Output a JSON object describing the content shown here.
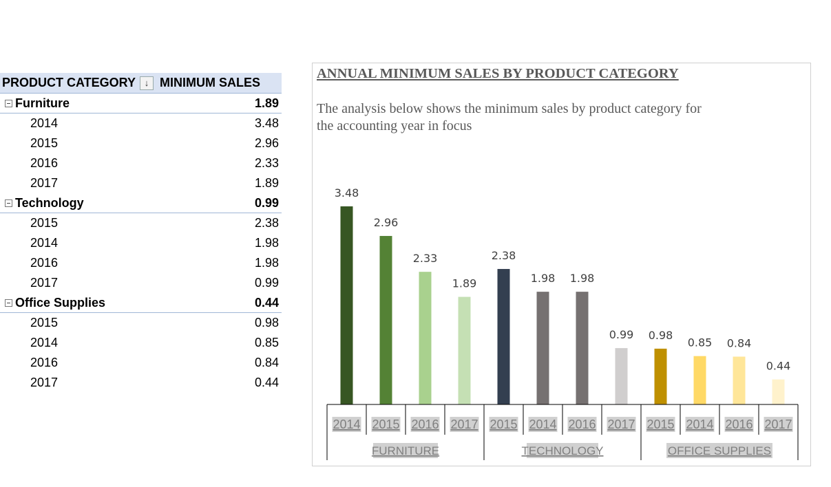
{
  "pivot": {
    "header": {
      "category": "PRODUCT CATEGORY",
      "value": "MINIMUM SALES"
    },
    "groups": [
      {
        "name": "Furniture",
        "total": "1.89",
        "rows": [
          {
            "year": "2014",
            "value": "3.48"
          },
          {
            "year": "2015",
            "value": "2.96"
          },
          {
            "year": "2016",
            "value": "2.33"
          },
          {
            "year": "2017",
            "value": "1.89"
          }
        ]
      },
      {
        "name": "Technology",
        "total": "0.99",
        "rows": [
          {
            "year": "2015",
            "value": "2.38"
          },
          {
            "year": "2014",
            "value": "1.98"
          },
          {
            "year": "2016",
            "value": "1.98"
          },
          {
            "year": "2017",
            "value": "0.99"
          }
        ]
      },
      {
        "name": "Office Supplies",
        "total": "0.44",
        "rows": [
          {
            "year": "2015",
            "value": "0.98"
          },
          {
            "year": "2014",
            "value": "0.85"
          },
          {
            "year": "2016",
            "value": "0.84"
          },
          {
            "year": "2017",
            "value": "0.44"
          }
        ]
      }
    ]
  },
  "chart_data": {
    "type": "bar",
    "title": "ANNUAL MINIMUM SALES BY PRODUCT CATEGORY",
    "subtitle": "The analysis below shows the minimum sales by product category for the accounting year in focus",
    "xlabel": "",
    "ylabel": "",
    "ylim": [
      0,
      3.48
    ],
    "grid": false,
    "legend": "none",
    "groups": [
      {
        "name": "FURNITURE",
        "bars": [
          {
            "x": "2014",
            "value": 3.48,
            "label": "3.48",
            "color": "#375623"
          },
          {
            "x": "2015",
            "value": 2.96,
            "label": "2.96",
            "color": "#548235"
          },
          {
            "x": "2016",
            "value": 2.33,
            "label": "2.33",
            "color": "#a9d18e"
          },
          {
            "x": "2017",
            "value": 1.89,
            "label": "1.89",
            "color": "#c5e0b4"
          }
        ]
      },
      {
        "name": "TECHNOLOGY",
        "bars": [
          {
            "x": "2015",
            "value": 2.38,
            "label": "2.38",
            "color": "#333f50"
          },
          {
            "x": "2014",
            "value": 1.98,
            "label": "1.98",
            "color": "#767171"
          },
          {
            "x": "2016",
            "value": 1.98,
            "label": "1.98",
            "color": "#767171"
          },
          {
            "x": "2017",
            "value": 0.99,
            "label": "0.99",
            "color": "#d0cece"
          }
        ]
      },
      {
        "name": "OFFICE SUPPLIES",
        "bars": [
          {
            "x": "2015",
            "value": 0.98,
            "label": "0.98",
            "color": "#bf9000"
          },
          {
            "x": "2014",
            "value": 0.85,
            "label": "0.85",
            "color": "#ffd966"
          },
          {
            "x": "2016",
            "value": 0.84,
            "label": "0.84",
            "color": "#ffe699"
          },
          {
            "x": "2017",
            "value": 0.44,
            "label": "0.44",
            "color": "#fff2cc"
          }
        ]
      }
    ]
  }
}
